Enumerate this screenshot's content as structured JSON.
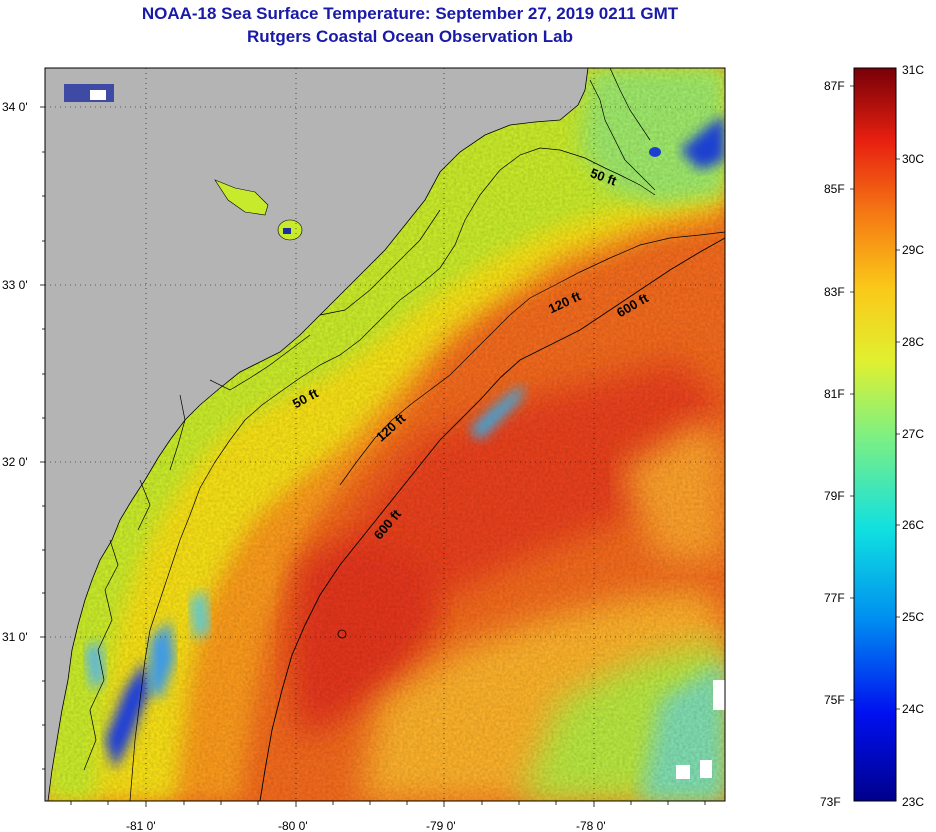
{
  "title": {
    "line1": "NOAA-18 Sea Surface Temperature:  September 27, 2019 0211 GMT",
    "line2": "Rutgers Coastal Ocean Observation Lab"
  },
  "map": {
    "lat_ticks": [
      "34 0'",
      "33 0'",
      "32 0'",
      "31 0'"
    ],
    "lon_ticks": [
      "-81 0'",
      "-80 0'",
      "-79 0'",
      "-78 0'"
    ],
    "contour_labels": [
      "50 ft",
      "50 ft",
      "120 ft",
      "120 ft",
      "600 ft",
      "600 ft"
    ],
    "colors": {
      "land": "#b4b4b4",
      "cloud": "#0a1090"
    }
  },
  "colorbar": {
    "fahrenheit": [
      "87F",
      "85F",
      "83F",
      "81F",
      "79F",
      "77F",
      "75F",
      "73F"
    ],
    "celsius": [
      "31C",
      "30C",
      "29C",
      "28C",
      "27C",
      "26C",
      "25C",
      "24C",
      "23C"
    ]
  }
}
